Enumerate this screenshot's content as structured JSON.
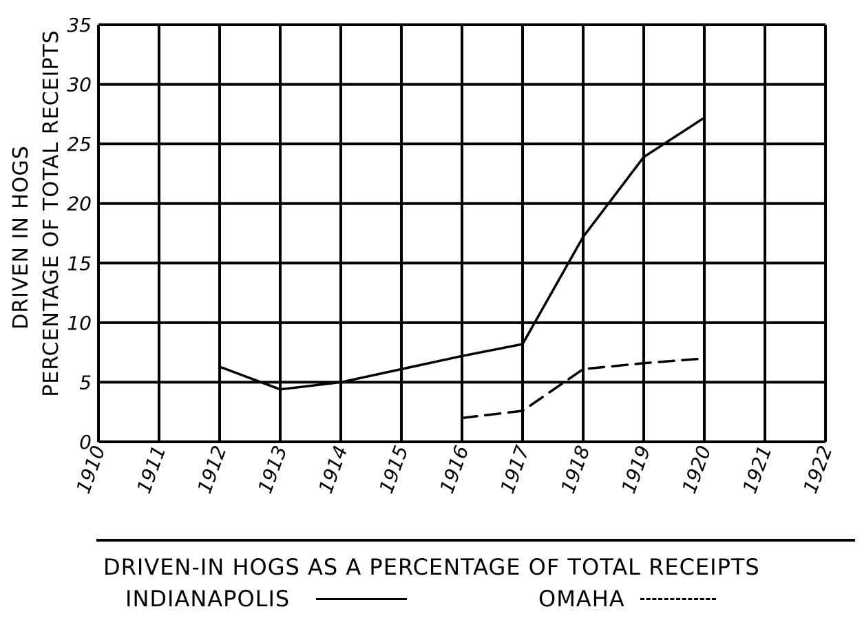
{
  "chart_data": {
    "type": "line",
    "title": "DRIVEN-IN HOGS AS A PERCENTAGE OF TOTAL RECEIPTS",
    "ylabel_line1": "DRIVEN IN HOGS",
    "ylabel_line2": "PERCENTAGE OF TOTAL RECEIPTS",
    "xlabel": "",
    "x_ticks": [
      "1910",
      "1911",
      "1912",
      "1913",
      "1914",
      "1915",
      "1916",
      "1917",
      "1918",
      "1919",
      "1920",
      "1921",
      "1922"
    ],
    "y_ticks": [
      "0",
      "5",
      "10",
      "15",
      "20",
      "25",
      "30",
      "35"
    ],
    "xlim": [
      1910,
      1922
    ],
    "ylim": [
      0,
      35
    ],
    "grid": true,
    "series": [
      {
        "name": "INDIANAPOLIS",
        "style": "solid",
        "color": "#000000",
        "x": [
          1912,
          1913,
          1914,
          1915,
          1916,
          1917,
          1918,
          1919,
          1920
        ],
        "y": [
          6.3,
          4.4,
          5.0,
          6.1,
          7.2,
          8.2,
          17.2,
          23.9,
          27.2
        ]
      },
      {
        "name": "OMAHA",
        "style": "dashed",
        "color": "#000000",
        "x": [
          1916,
          1917,
          1918,
          1919,
          1920
        ],
        "y": [
          2.0,
          2.6,
          6.1,
          6.6,
          7.0
        ]
      }
    ],
    "legend": {
      "placement": "bottom"
    }
  }
}
